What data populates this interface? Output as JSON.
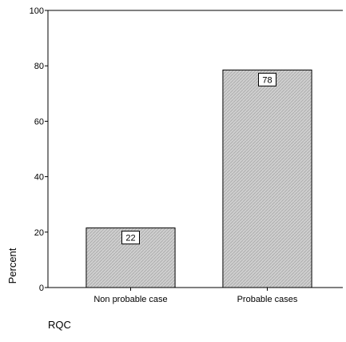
{
  "chart_data": {
    "type": "bar",
    "categories": [
      "Non probable case",
      "Probable cases"
    ],
    "values": [
      21.5,
      78.5
    ],
    "data_labels": [
      "22",
      "78"
    ],
    "title": "",
    "xlabel": "RQC",
    "ylabel": "Percent",
    "ylim": [
      0,
      100
    ],
    "yticks": [
      "0",
      "20",
      "40",
      "60",
      "80",
      "100"
    ],
    "grid": false,
    "legend": "none",
    "bar_fill": "#cfcfcf",
    "bar_stroke": "#000000",
    "label_box_fill": "#ffffff"
  }
}
